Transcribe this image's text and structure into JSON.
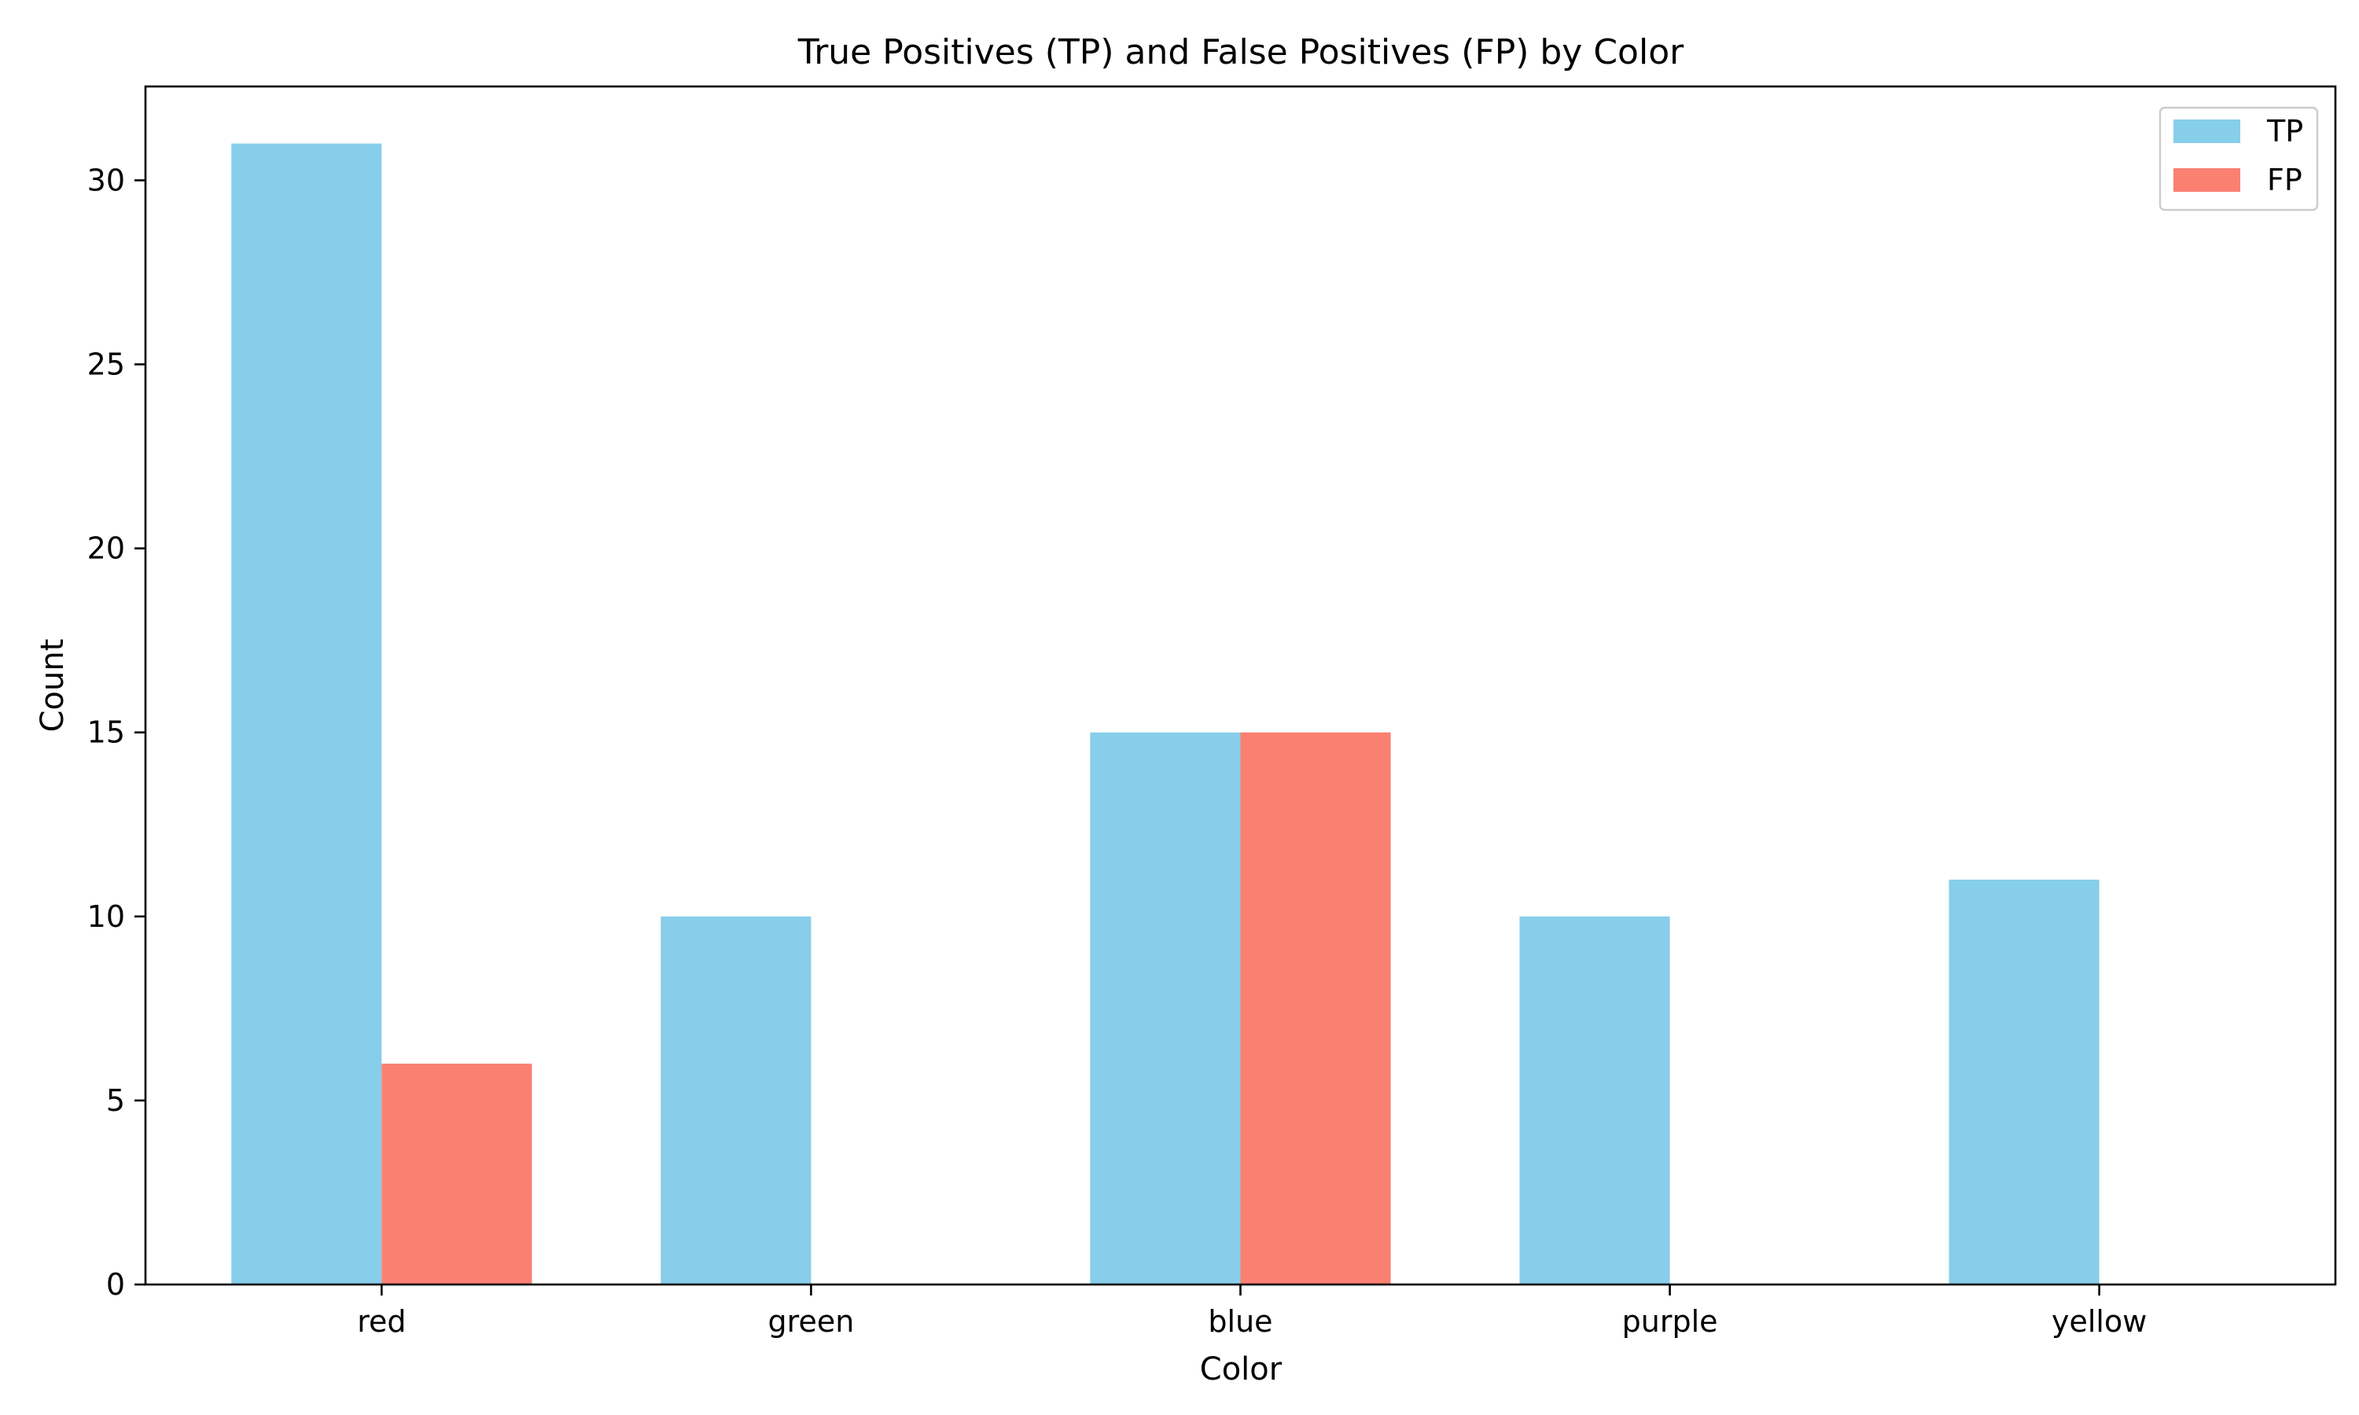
{
  "chart_data": {
    "type": "bar",
    "title": "True Positives (TP) and False Positives (FP) by Color",
    "xlabel": "Color",
    "ylabel": "Count",
    "categories": [
      "red",
      "green",
      "blue",
      "purple",
      "yellow"
    ],
    "series": [
      {
        "name": "TP",
        "color": "#87CEEB",
        "values": [
          31,
          10,
          15,
          10,
          11
        ]
      },
      {
        "name": "FP",
        "color": "#FA8072",
        "values": [
          6,
          0,
          15,
          0,
          0
        ]
      }
    ],
    "ylim": [
      0,
      32.55
    ],
    "yticks": [
      0,
      5,
      10,
      15,
      20,
      25,
      30
    ],
    "grid": false,
    "legend": "top-right"
  }
}
